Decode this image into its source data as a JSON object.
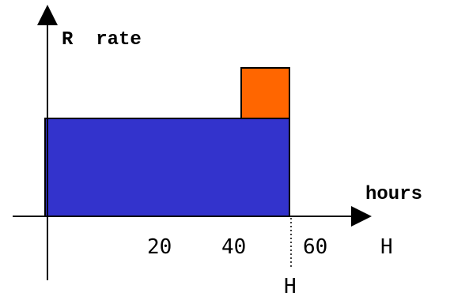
{
  "labels": {
    "y_axis": "R  rate",
    "x_axis": "hours",
    "tick_20": "20",
    "tick_40": "40",
    "tick_60": "60",
    "h_right": "H",
    "h_marker": "H"
  },
  "colors": {
    "base_rect": "#3333CC",
    "overtime_rect": "#FF6600",
    "axis": "#000000"
  }
}
